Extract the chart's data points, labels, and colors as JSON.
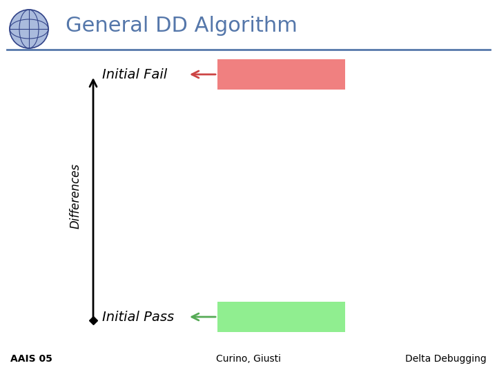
{
  "title": "General DD Algorithm",
  "title_color": "#5577aa",
  "title_fontsize": 22,
  "bg_color": "#ffffff",
  "header_line_color": "#5577aa",
  "axis_label": "Differences",
  "initial_fail_label": "Initial Fail",
  "initial_pass_label": "Initial Pass",
  "fail_box_color": "#f08080",
  "pass_box_color": "#90ee90",
  "fail_arrow_color": "#cc4444",
  "pass_arrow_color": "#55aa55",
  "footer_left": "AAIS 05",
  "footer_center": "Curino, Giusti",
  "footer_right": "Delta Debugging",
  "footer_fontsize": 10,
  "label_fontsize": 14,
  "axis_label_fontsize": 12,
  "globe_color": "#aabbdd",
  "globe_line_color": "#334488"
}
